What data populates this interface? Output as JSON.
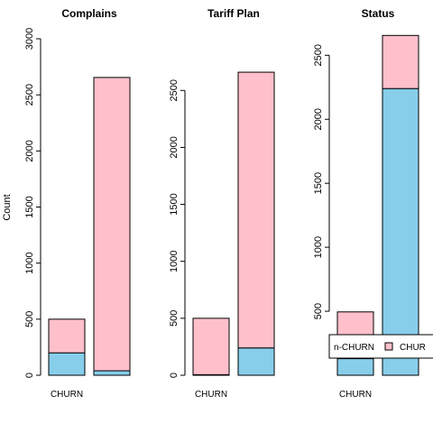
{
  "chart_data": [
    {
      "type": "bar",
      "stacked": true,
      "title": "Complains",
      "ylabel": "Count",
      "ylim": [
        0,
        3000
      ],
      "yticks": [
        0,
        500,
        1000,
        1500,
        2000,
        2500,
        3000
      ],
      "categories": [
        "CHURN",
        ""
      ],
      "series": [
        {
          "values": [
            200,
            40
          ]
        },
        {
          "values": [
            300,
            2615
          ]
        }
      ]
    },
    {
      "type": "bar",
      "stacked": true,
      "title": "Tariff Plan",
      "ylabel": "",
      "ylim": [
        0,
        2700
      ],
      "yticks": [
        0,
        500,
        1000,
        1500,
        2000,
        2500
      ],
      "categories": [
        "CHURN",
        ""
      ],
      "series": [
        {
          "values": [
            5,
            240
          ]
        },
        {
          "values": [
            495,
            2420
          ]
        }
      ]
    },
    {
      "type": "bar",
      "stacked": true,
      "title": "Status",
      "ylabel": "",
      "ylim": [
        0,
        2650
      ],
      "yticks": [
        500,
        1000,
        1500,
        2000,
        2500
      ],
      "categories": [
        "CHURN",
        ""
      ],
      "series": [
        {
          "values": [
            130,
            2240
          ]
        },
        {
          "values": [
            365,
            415
          ]
        }
      ],
      "legend": {
        "placement": "bottom-right",
        "items": [
          "n-CHURN",
          "CHUR"
        ]
      }
    }
  ],
  "colors": {
    "non_churn": "#87ceeb",
    "churn": "#ffc0cb"
  }
}
